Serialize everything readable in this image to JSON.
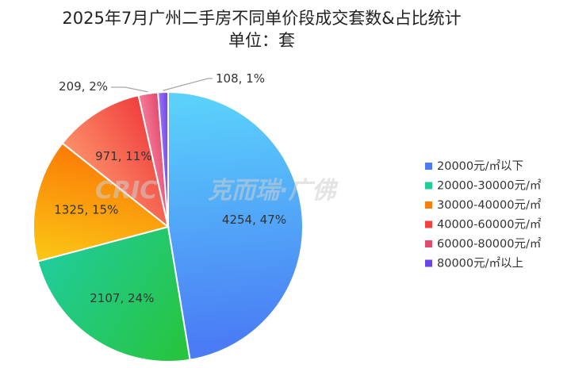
{
  "chart_data": {
    "type": "pie",
    "title": "2025年7月广州二手房不同单价段成交套数&占比统计",
    "subtitle": "单位：套",
    "legend_position": "right",
    "slices": [
      {
        "label": "20000元/㎡以下",
        "value": 4254,
        "percent": "47%",
        "data_label": "4254, 47%",
        "color_start": "#5ad0fb",
        "color_end": "#4a7cf5"
      },
      {
        "label": "20000-30000元/㎡",
        "value": 2107,
        "percent": "24%",
        "data_label": "2107, 24%",
        "color_start": "#27c43f",
        "color_end": "#21cc98"
      },
      {
        "label": "30000-40000元/㎡",
        "value": 1325,
        "percent": "15%",
        "data_label": "1325, 15%",
        "color_start": "#fbc414",
        "color_end": "#fb7e07"
      },
      {
        "label": "40000-60000元/㎡",
        "value": 971,
        "percent": "11%",
        "data_label": "971, 11%",
        "color_start": "#fc8b66",
        "color_end": "#f0423f"
      },
      {
        "label": "60000-80000元/㎡",
        "value": 209,
        "percent": "2%",
        "data_label": "209, 2%",
        "color_start": "#f37a98",
        "color_end": "#e34b6d"
      },
      {
        "label": "80000元/㎡以上",
        "value": 108,
        "percent": "1%",
        "data_label": "108, 1%",
        "color_start": "#9b72f2",
        "color_end": "#6b46e6"
      }
    ]
  },
  "watermark": {
    "logo": "CRIC",
    "text": "克而瑞·广佛"
  }
}
